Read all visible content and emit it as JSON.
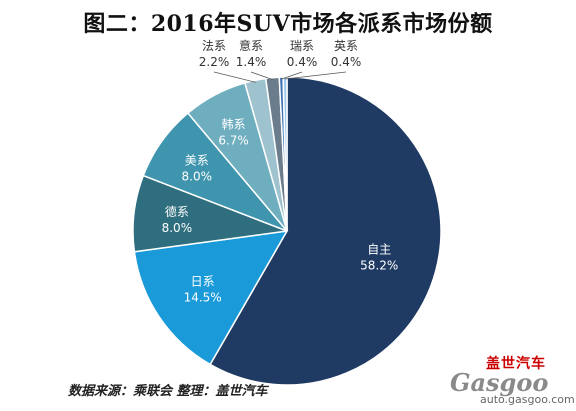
{
  "title": "图二：2016年SUV市场各派系市场份额",
  "source_note": "数据来源：乘联会  整理：盖世汽车",
  "watermark": {
    "cn_name": "盖世汽车",
    "logo_text": "Gasgoo",
    "url": "auto.gasgoo.com"
  },
  "chart_data": {
    "type": "pie",
    "title": "图二：2016年SUV市场各派系市场份额",
    "start_angle_deg": 90,
    "direction": "clockwise",
    "slices": [
      {
        "label": "自主",
        "value": 58.2,
        "value_label": "58.2%",
        "color": "#1f3b63"
      },
      {
        "label": "日系",
        "value": 14.5,
        "value_label": "14.5%",
        "color": "#1a9ad8"
      },
      {
        "label": "德系",
        "value": 8.0,
        "value_label": "8.0%",
        "color": "#2e6e7e"
      },
      {
        "label": "美系",
        "value": 8.0,
        "value_label": "8.0%",
        "color": "#3e95ad"
      },
      {
        "label": "韩系",
        "value": 6.7,
        "value_label": "6.7%",
        "color": "#6eaebf"
      },
      {
        "label": "法系",
        "value": 2.2,
        "value_label": "2.2%",
        "color": "#9ec3cf"
      },
      {
        "label": "意系",
        "value": 1.4,
        "value_label": "1.4%",
        "color": "#6b7c8c"
      },
      {
        "label": "瑞系",
        "value": 0.4,
        "value_label": "0.4%",
        "color": "#3f74b5"
      },
      {
        "label": "英系",
        "value": 0.4,
        "value_label": "0.4%",
        "color": "#9fc8ee"
      }
    ],
    "legend": "none"
  }
}
